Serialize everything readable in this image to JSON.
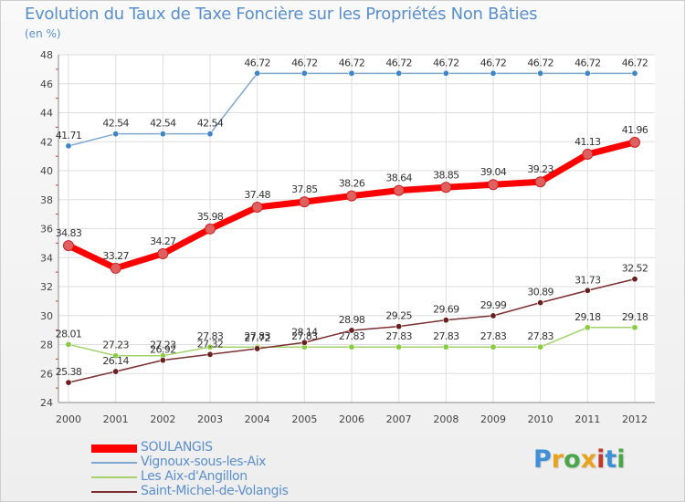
{
  "title": "Evolution du Taux de Taxe Foncière sur les Propriétés Non Bâties",
  "subtitle": "(en %)",
  "logo": {
    "text": "Proxiti",
    "colors": [
      "#3e8fd6",
      "#e8a21c",
      "#4aa64a",
      "#e8a21c",
      "#c0392b",
      "#3e8fd6",
      "#4aa64a"
    ]
  },
  "chart_data": {
    "type": "line",
    "title": "Evolution du Taux de Taxe Foncière sur les Propriétés Non Bâties",
    "ylabel": "(en %)",
    "xlabel": "",
    "x": [
      "2000",
      "2001",
      "2002",
      "2003",
      "2004",
      "2005",
      "2006",
      "2007",
      "2008",
      "2009",
      "2010",
      "2011",
      "2012"
    ],
    "ylim": [
      24,
      48
    ],
    "yticks": [
      24,
      26,
      28,
      30,
      32,
      34,
      36,
      38,
      40,
      42,
      44,
      46,
      48
    ],
    "grid": true,
    "legend_position": "bottom-left",
    "series": [
      {
        "name": "SOULANGIS",
        "color": "#ff0000",
        "marker": "#e06060",
        "values": [
          34.83,
          33.27,
          34.27,
          35.98,
          37.48,
          37.85,
          38.26,
          38.64,
          38.85,
          39.04,
          39.23,
          41.13,
          41.96
        ]
      },
      {
        "name": "Vignoux-sous-les-Aix",
        "color": "#7fa8d0",
        "marker": "#3f86c6",
        "values": [
          41.71,
          42.54,
          42.54,
          42.54,
          46.72,
          46.72,
          46.72,
          46.72,
          46.72,
          46.72,
          46.72,
          46.72,
          46.72
        ]
      },
      {
        "name": "Les Aix-d'Angillon",
        "color": "#a4d36c",
        "marker": "#88cc44",
        "values": [
          28.01,
          27.23,
          27.23,
          27.83,
          27.83,
          27.83,
          27.83,
          27.83,
          27.83,
          27.83,
          27.83,
          29.18,
          29.18
        ]
      },
      {
        "name": "Saint-Michel-de-Volangis",
        "color": "#7a3030",
        "marker": "#6a1f1f",
        "values": [
          25.38,
          26.14,
          26.92,
          27.32,
          27.72,
          28.14,
          28.98,
          29.25,
          29.69,
          29.99,
          30.89,
          31.73,
          32.52
        ]
      }
    ]
  }
}
